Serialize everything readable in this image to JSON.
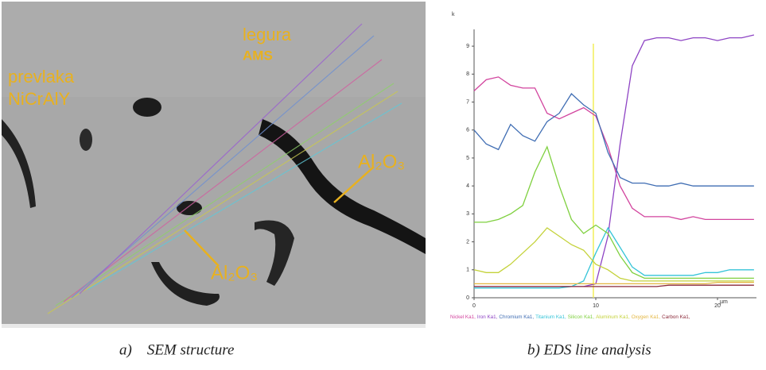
{
  "sem": {
    "labels": [
      "legura",
      "AMS",
      "prevlaka",
      "NiCrAlY",
      "Al₂O₃",
      "Al₂O₃"
    ]
  },
  "captions": [
    "a)    SEM structure",
    "b) EDS line analysis"
  ],
  "chart_data": {
    "type": "line",
    "y_unit_label": "k",
    "x_unit_label": "µm",
    "x": [
      0,
      1,
      2,
      3,
      4,
      5,
      6,
      7,
      8,
      9,
      10,
      11,
      12,
      13,
      14,
      15,
      16,
      17,
      18,
      19,
      20,
      21,
      22,
      23
    ],
    "xlim": [
      0,
      23.2
    ],
    "xticks": [
      0,
      10,
      20
    ],
    "ylim": [
      0,
      9.6
    ],
    "yticks": [
      0,
      1,
      2,
      3,
      4,
      5,
      6,
      7,
      8,
      9
    ],
    "marker_x": 9.8,
    "marker_color": "#f2ee58",
    "series": [
      {
        "name": "Nickel Ka1,",
        "color": "#d2449e",
        "values": [
          7.4,
          7.8,
          7.9,
          7.6,
          7.5,
          7.5,
          6.6,
          6.4,
          6.6,
          6.8,
          6.5,
          5.4,
          4.0,
          3.2,
          2.9,
          2.9,
          2.9,
          2.8,
          2.9,
          2.8,
          2.8,
          2.8,
          2.8,
          2.8
        ]
      },
      {
        "name": "Iron Ka1,",
        "color": "#8e44c4",
        "values": [
          0.4,
          0.4,
          0.4,
          0.4,
          0.4,
          0.4,
          0.4,
          0.4,
          0.4,
          0.4,
          0.5,
          2.2,
          5.5,
          8.3,
          9.2,
          9.3,
          9.3,
          9.2,
          9.3,
          9.3,
          9.2,
          9.3,
          9.3,
          9.4
        ]
      },
      {
        "name": "Chromium Ka1,",
        "color": "#3f6db3",
        "values": [
          6.0,
          5.5,
          5.3,
          6.2,
          5.8,
          5.6,
          6.3,
          6.6,
          7.3,
          6.9,
          6.6,
          5.2,
          4.3,
          4.1,
          4.1,
          4.0,
          4.0,
          4.1,
          4.0,
          4.0,
          4.0,
          4.0,
          4.0,
          4.0
        ]
      },
      {
        "name": "Titanium Ka1,",
        "color": "#35c4d8",
        "values": [
          0.35,
          0.35,
          0.35,
          0.35,
          0.35,
          0.35,
          0.35,
          0.35,
          0.4,
          0.6,
          1.6,
          2.5,
          1.8,
          1.1,
          0.8,
          0.8,
          0.8,
          0.8,
          0.8,
          0.9,
          0.9,
          1.0,
          1.0,
          1.0
        ]
      },
      {
        "name": "Silicon Ka1,",
        "color": "#7fd03f",
        "values": [
          2.7,
          2.7,
          2.8,
          3.0,
          3.3,
          4.5,
          5.4,
          4.0,
          2.8,
          2.3,
          2.6,
          2.3,
          1.5,
          0.9,
          0.7,
          0.7,
          0.7,
          0.7,
          0.7,
          0.7,
          0.7,
          0.7,
          0.7,
          0.7
        ]
      },
      {
        "name": "Aluminum Ka1,",
        "color": "#c4d23a",
        "values": [
          1.0,
          0.9,
          0.9,
          1.2,
          1.6,
          2.0,
          2.5,
          2.2,
          1.9,
          1.7,
          1.2,
          1.0,
          0.7,
          0.6,
          0.6,
          0.6,
          0.6,
          0.6,
          0.6,
          0.6,
          0.6,
          0.6,
          0.6,
          0.6
        ]
      },
      {
        "name": "Oxygen Ka1,",
        "color": "#e3b640",
        "values": [
          0.5,
          0.5,
          0.5,
          0.5,
          0.5,
          0.5,
          0.5,
          0.5,
          0.5,
          0.5,
          0.5,
          0.5,
          0.5,
          0.5,
          0.5,
          0.5,
          0.5,
          0.5,
          0.5,
          0.5,
          0.55,
          0.55,
          0.55,
          0.55
        ]
      },
      {
        "name": "Carbon Ka1,",
        "color": "#8b2a3a",
        "values": [
          0.4,
          0.4,
          0.4,
          0.4,
          0.4,
          0.4,
          0.4,
          0.4,
          0.4,
          0.4,
          0.4,
          0.4,
          0.4,
          0.4,
          0.4,
          0.4,
          0.45,
          0.45,
          0.45,
          0.45,
          0.45,
          0.45,
          0.45,
          0.45
        ]
      }
    ]
  }
}
